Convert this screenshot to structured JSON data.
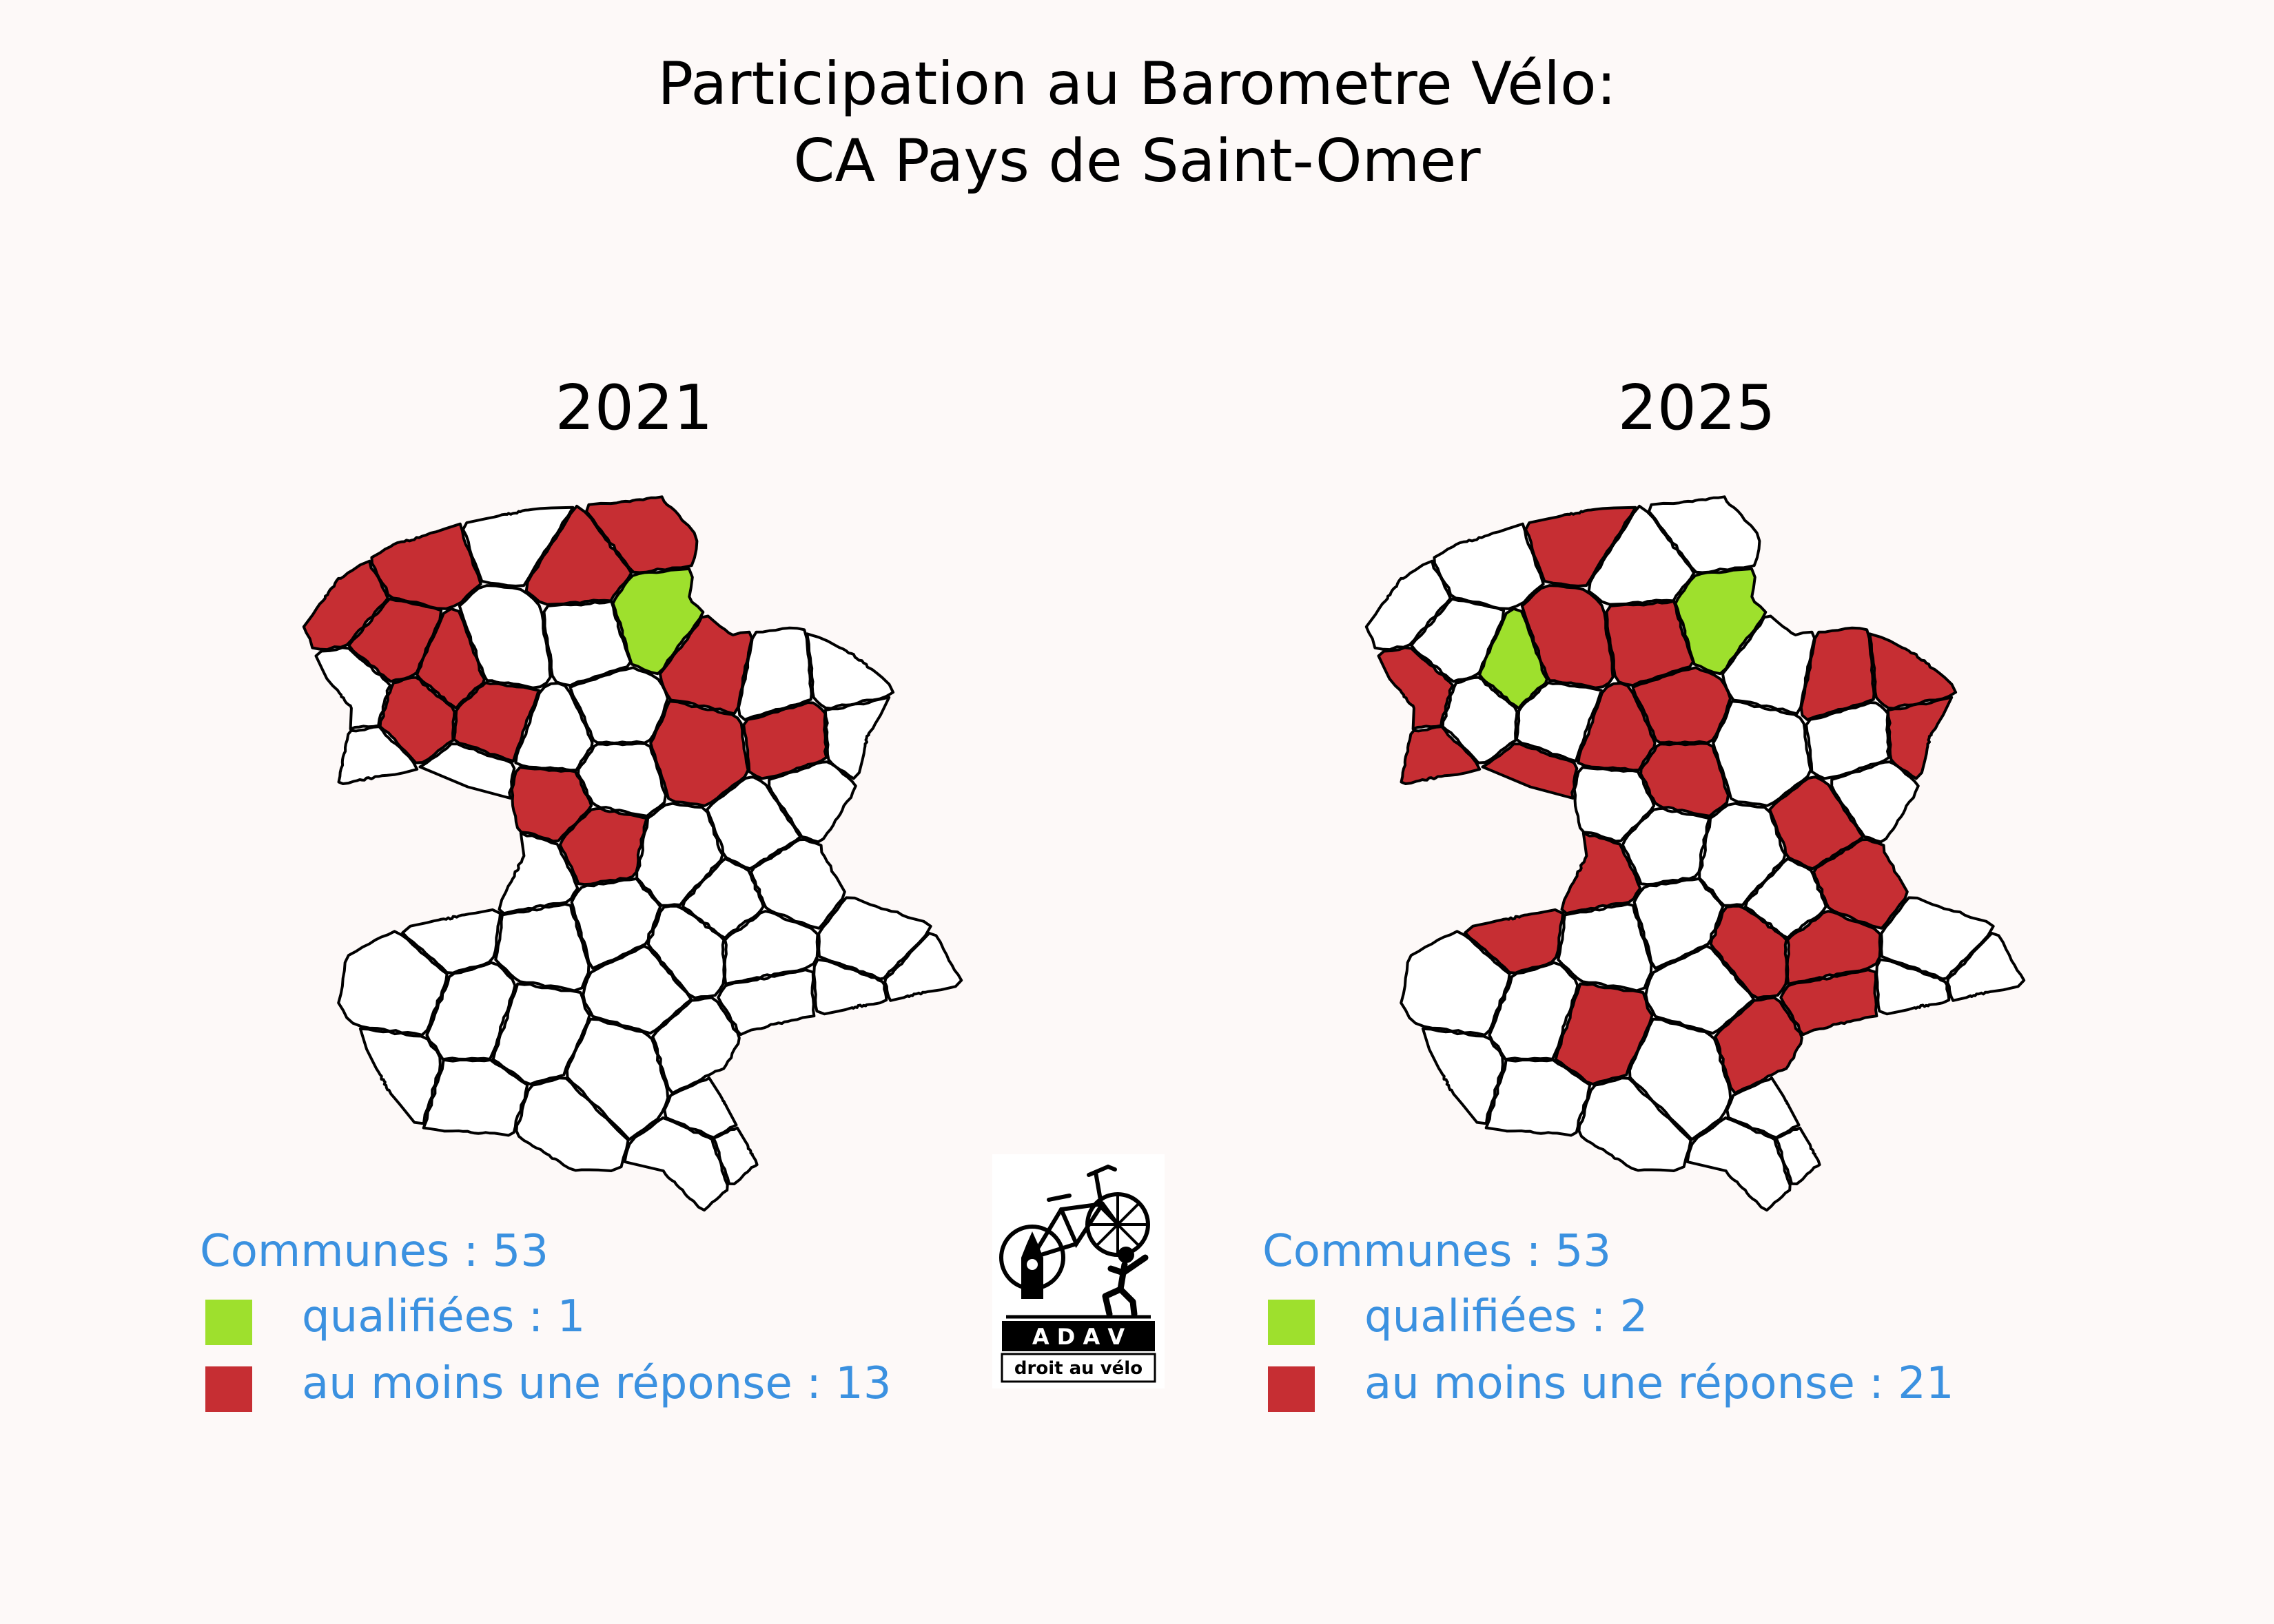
{
  "title_line1": "Participation au Barometre Vélo:",
  "title_line2": "CA Pays de Saint-Omer",
  "colors": {
    "qualified": "#9ee02d",
    "responded": "#c62e33",
    "none": "#ffffff",
    "legend_text": "#3b91e0"
  },
  "panels": [
    {
      "year": "2021",
      "communes_label": "Communes : 53",
      "qualified_label": "qualifiées : 1",
      "responded_label": "au moins une réponse : 13",
      "qualified_count": 1,
      "responded_count": 13
    },
    {
      "year": "2025",
      "communes_label": "Communes : 53",
      "qualified_label": "qualifiées : 2",
      "responded_label": "au moins une réponse : 21",
      "qualified_count": 2,
      "responded_count": 21
    }
  ],
  "logo": {
    "band_text": "A D A V",
    "caption": "droit au vélo"
  }
}
